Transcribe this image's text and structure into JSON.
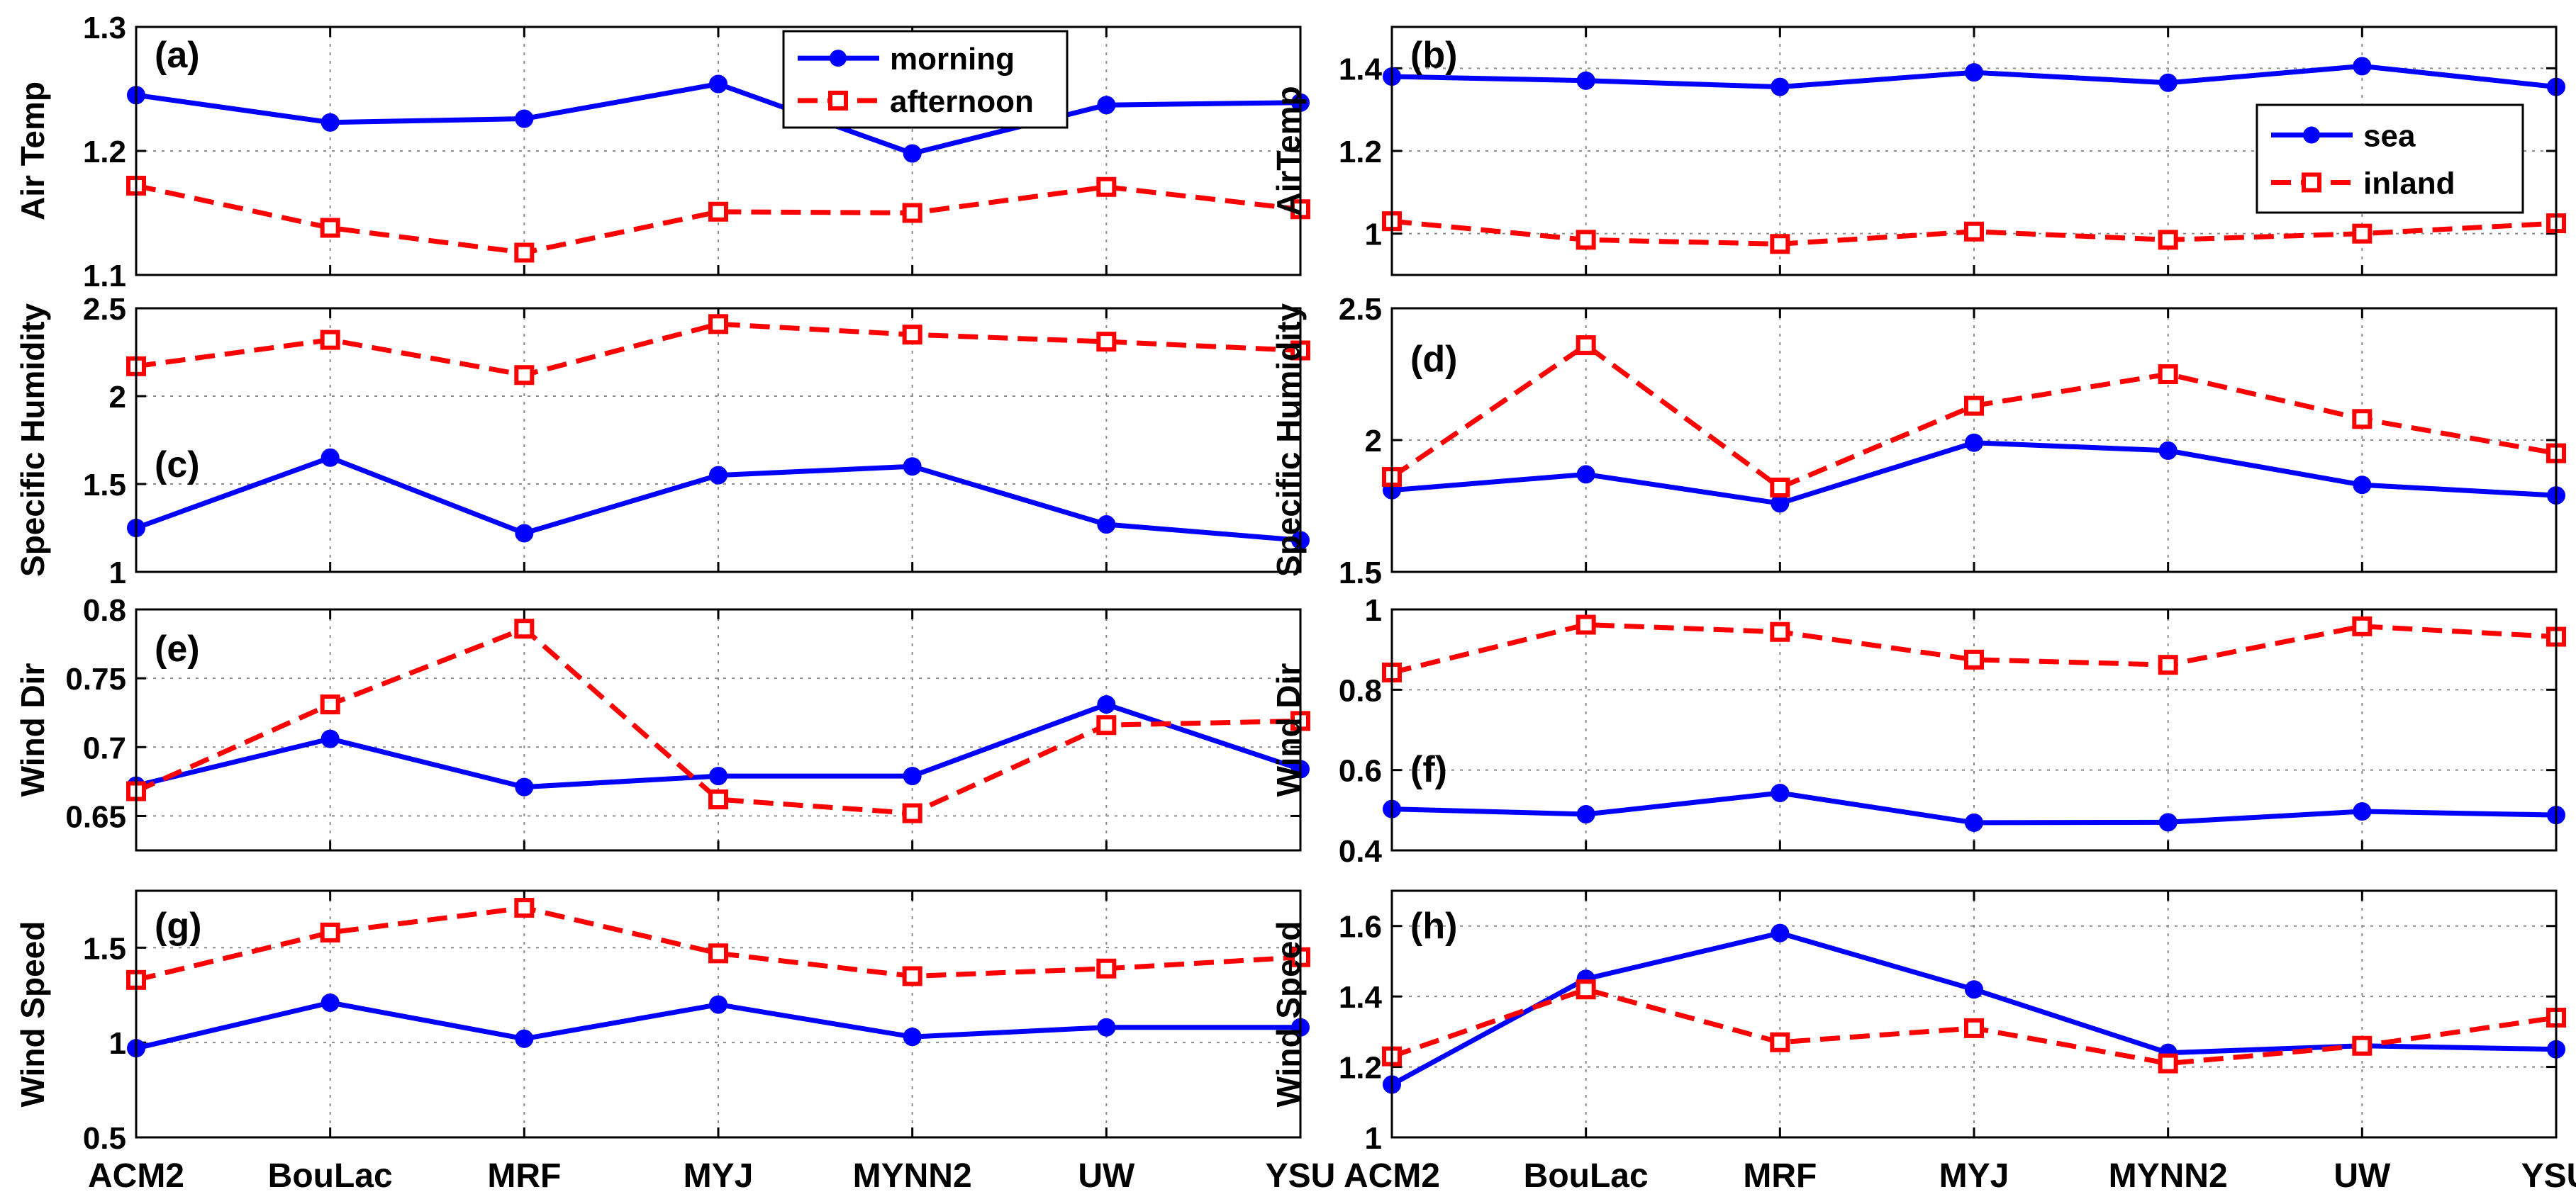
{
  "colors": {
    "series_a": "#0000ff",
    "series_b": "#ff0000",
    "grid": "#8c8c8c",
    "axis": "#000000"
  },
  "categories": [
    "ACM2",
    "BouLac",
    "MRF",
    "MYJ",
    "MYNN2",
    "UW",
    "YSU"
  ],
  "legends": {
    "left": {
      "items": [
        "morning",
        "afternoon"
      ]
    },
    "right": {
      "items": [
        "sea",
        "inland"
      ]
    }
  },
  "chart_data": [
    {
      "type": "line",
      "panel": "(a)",
      "ylabel": "Air Temp",
      "ylim": [
        1.1,
        1.3
      ],
      "yticks": [
        "1.1",
        "1.2",
        "1.3"
      ],
      "categories": [
        "ACM2",
        "BouLac",
        "MRF",
        "MYJ",
        "MYNN2",
        "UW",
        "YSU"
      ],
      "series": [
        {
          "name": "morning",
          "values": [
            1.245,
            1.223,
            1.226,
            1.254,
            1.198,
            1.237,
            1.239
          ]
        },
        {
          "name": "afternoon",
          "values": [
            1.172,
            1.138,
            1.118,
            1.151,
            1.15,
            1.171,
            1.153
          ]
        }
      ]
    },
    {
      "type": "line",
      "panel": "(b)",
      "ylabel": "AirTemp",
      "ylim": [
        0.9,
        1.5
      ],
      "yticks": [
        "1",
        "1.2",
        "1.4"
      ],
      "categories": [
        "ACM2",
        "BouLac",
        "MRF",
        "MYJ",
        "MYNN2",
        "UW",
        "YSU"
      ],
      "series": [
        {
          "name": "sea",
          "values": [
            1.38,
            1.37,
            1.355,
            1.39,
            1.365,
            1.405,
            1.355
          ]
        },
        {
          "name": "inland",
          "values": [
            1.03,
            0.985,
            0.975,
            1.005,
            0.985,
            1.0,
            1.025
          ]
        }
      ]
    },
    {
      "type": "line",
      "panel": "(c)",
      "ylabel": "Specific Humidity",
      "ylim": [
        1,
        2.5
      ],
      "yticks": [
        "1",
        "1.5",
        "2",
        "2.5"
      ],
      "categories": [
        "ACM2",
        "BouLac",
        "MRF",
        "MYJ",
        "MYNN2",
        "UW",
        "YSU"
      ],
      "series": [
        {
          "name": "morning",
          "values": [
            1.25,
            1.65,
            1.22,
            1.55,
            1.6,
            1.27,
            1.18
          ]
        },
        {
          "name": "afternoon",
          "values": [
            2.17,
            2.32,
            2.12,
            2.41,
            2.35,
            2.31,
            2.26
          ]
        }
      ]
    },
    {
      "type": "line",
      "panel": "(d)",
      "ylabel": "Specific Humidity",
      "ylim": [
        1.5,
        2.5
      ],
      "yticks": [
        "1.5",
        "2",
        "2.5"
      ],
      "categories": [
        "ACM2",
        "BouLac",
        "MRF",
        "MYJ",
        "MYNN2",
        "UW",
        "YSU"
      ],
      "series": [
        {
          "name": "sea",
          "values": [
            1.81,
            1.87,
            1.76,
            1.99,
            1.96,
            1.83,
            1.79
          ]
        },
        {
          "name": "inland",
          "values": [
            1.86,
            2.36,
            1.82,
            2.13,
            2.25,
            2.08,
            1.95
          ]
        }
      ]
    },
    {
      "type": "line",
      "panel": "(e)",
      "ylabel": "Wind Dir",
      "ylim": [
        0.625,
        0.8
      ],
      "yticks": [
        "0.65",
        "0.7",
        "0.75",
        "0.8"
      ],
      "categories": [
        "ACM2",
        "BouLac",
        "MRF",
        "MYJ",
        "MYNN2",
        "UW",
        "YSU"
      ],
      "series": [
        {
          "name": "morning",
          "values": [
            0.672,
            0.706,
            0.671,
            0.679,
            0.679,
            0.731,
            0.684
          ]
        },
        {
          "name": "afternoon",
          "values": [
            0.668,
            0.731,
            0.786,
            0.662,
            0.652,
            0.716,
            0.719
          ]
        }
      ]
    },
    {
      "type": "line",
      "panel": "(f)",
      "ylabel": "Wind Dir",
      "ylim": [
        0.4,
        1.0
      ],
      "yticks": [
        "0.4",
        "0.6",
        "0.8",
        "1"
      ],
      "categories": [
        "ACM2",
        "BouLac",
        "MRF",
        "MYJ",
        "MYNN2",
        "UW",
        "YSU"
      ],
      "series": [
        {
          "name": "sea",
          "values": [
            0.503,
            0.49,
            0.543,
            0.469,
            0.47,
            0.497,
            0.488
          ]
        },
        {
          "name": "inland",
          "values": [
            0.843,
            0.962,
            0.944,
            0.875,
            0.862,
            0.958,
            0.932
          ]
        }
      ]
    },
    {
      "type": "line",
      "panel": "(g)",
      "ylabel": "Wind Speed",
      "ylim": [
        0.5,
        1.8
      ],
      "yticks": [
        "0.5",
        "1",
        "1.5"
      ],
      "categories": [
        "ACM2",
        "BouLac",
        "MRF",
        "MYJ",
        "MYNN2",
        "UW",
        "YSU"
      ],
      "series": [
        {
          "name": "morning",
          "values": [
            0.97,
            1.21,
            1.02,
            1.2,
            1.03,
            1.08,
            1.08
          ]
        },
        {
          "name": "afternoon",
          "values": [
            1.33,
            1.58,
            1.71,
            1.47,
            1.35,
            1.39,
            1.45
          ]
        }
      ]
    },
    {
      "type": "line",
      "panel": "(h)",
      "ylabel": "Wind Speed",
      "ylim": [
        1.0,
        1.7
      ],
      "yticks": [
        "1",
        "1.2",
        "1.4",
        "1.6"
      ],
      "categories": [
        "ACM2",
        "BouLac",
        "MRF",
        "MYJ",
        "MYNN2",
        "UW",
        "YSU"
      ],
      "series": [
        {
          "name": "sea",
          "values": [
            1.15,
            1.45,
            1.58,
            1.42,
            1.24,
            1.26,
            1.25
          ]
        },
        {
          "name": "inland",
          "values": [
            1.23,
            1.42,
            1.27,
            1.31,
            1.21,
            1.26,
            1.34
          ]
        }
      ]
    }
  ]
}
